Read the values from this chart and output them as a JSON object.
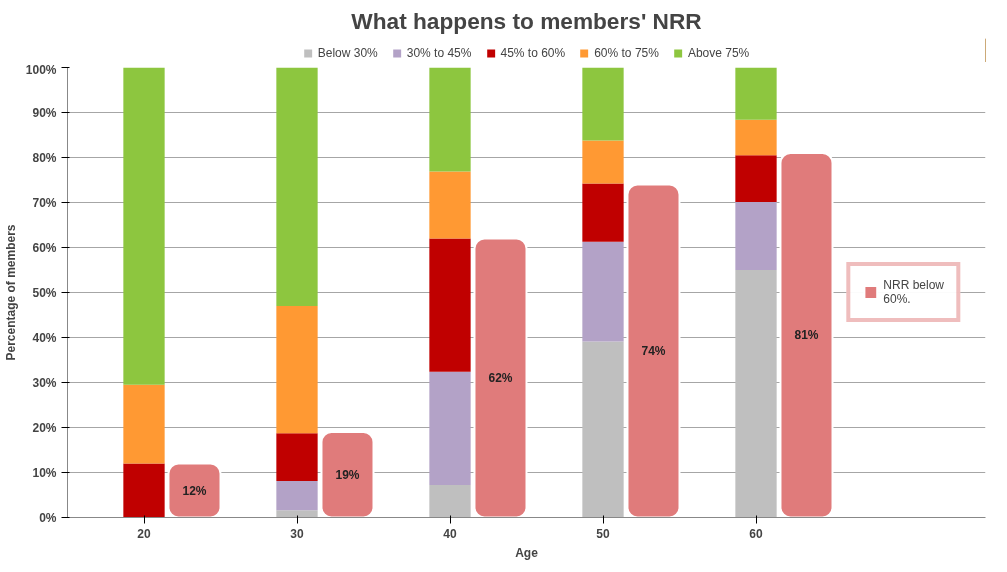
{
  "chart_data": {
    "type": "bar",
    "stacked": true,
    "title": "What happens to members' NRR",
    "xlabel": "Age",
    "ylabel": "Percentage of members",
    "categories": [
      "20",
      "30",
      "40",
      "50",
      "60",
      null
    ],
    "series": [
      {
        "name": "Below 30%",
        "color": "#bfbfbf",
        "values": [
          0,
          1.6,
          7.2,
          39.1,
          55,
          null
        ]
      },
      {
        "name": "30% to 45%",
        "color": "#b3a2c7",
        "values": [
          0,
          6.5,
          25.2,
          22.2,
          15.1,
          null
        ]
      },
      {
        "name": "45% to 60%",
        "color": "#c00000",
        "values": [
          12,
          10.6,
          29.6,
          12.9,
          10.4,
          null
        ]
      },
      {
        "name": "60% to 75%",
        "color": "#ff9933",
        "values": [
          17.5,
          28.3,
          14.9,
          9.6,
          7.9,
          null
        ]
      },
      {
        "name": "Above 75%",
        "color": "#8dc63f",
        "values": [
          70.5,
          53,
          23.1,
          16.2,
          11.6,
          null
        ]
      },
      {
        "name": "NRR below 60%.",
        "axis": "y2",
        "color": "#e07b7b",
        "values": [
          12,
          19,
          62,
          74,
          81,
          null
        ],
        "value_labels": [
          "12%",
          "19%",
          "62%",
          "74%",
          "81%",
          null
        ]
      }
    ],
    "ylim": [
      0,
      100
    ],
    "yticks": [
      {
        "value": 0,
        "label": "0%"
      },
      {
        "value": 10,
        "label": "10%"
      },
      {
        "value": 20,
        "label": "20%"
      },
      {
        "value": 30,
        "label": "30%"
      },
      {
        "value": 40,
        "label": "40%"
      },
      {
        "value": 50,
        "label": "50%"
      },
      {
        "value": 60,
        "label": "60%"
      },
      {
        "value": 70,
        "label": "70%"
      },
      {
        "value": 80,
        "label": "80%"
      },
      {
        "value": 90,
        "label": "90%"
      },
      {
        "value": 100,
        "label": "100%"
      }
    ],
    "y2lim": [
      0,
      100
    ],
    "grid": "y",
    "legend": "top"
  }
}
